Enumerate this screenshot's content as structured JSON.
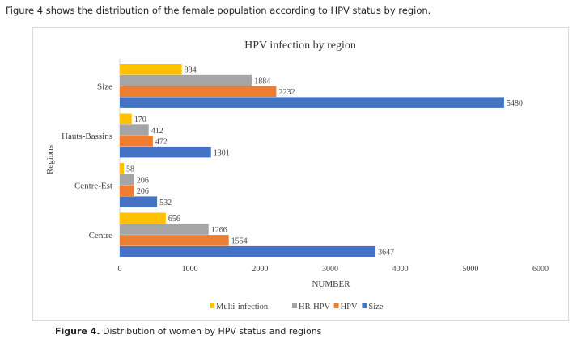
{
  "intro_text": "Figure 4 shows the distribution of the female population according to HPV status by region.",
  "caption": {
    "label": "Figure 4.",
    "text": " Distribution of women by HPV status and regions"
  },
  "chart_data": {
    "type": "bar",
    "orientation": "horizontal",
    "title": "HPV infection by region",
    "xlabel": "NUMBER",
    "ylabel": "Regions",
    "xlim": [
      0,
      6000
    ],
    "xticks": [
      0,
      1000,
      2000,
      3000,
      4000,
      5000,
      6000
    ],
    "grid": false,
    "legend_position": "bottom",
    "categories": [
      "Size",
      "Hauts-Bassins",
      "Centre-Est",
      "Centre"
    ],
    "series": [
      {
        "name": "Multi-infection",
        "color": "#FFC000",
        "values": [
          884,
          170,
          58,
          656
        ]
      },
      {
        "name": "HR-HPV",
        "color": "#A5A5A5",
        "values": [
          1884,
          412,
          206,
          1266
        ]
      },
      {
        "name": "HPV",
        "color": "#ED7D31",
        "values": [
          2232,
          472,
          206,
          1554
        ]
      },
      {
        "name": "Size",
        "color": "#4472C4",
        "values": [
          5480,
          1301,
          532,
          3647
        ]
      }
    ]
  }
}
